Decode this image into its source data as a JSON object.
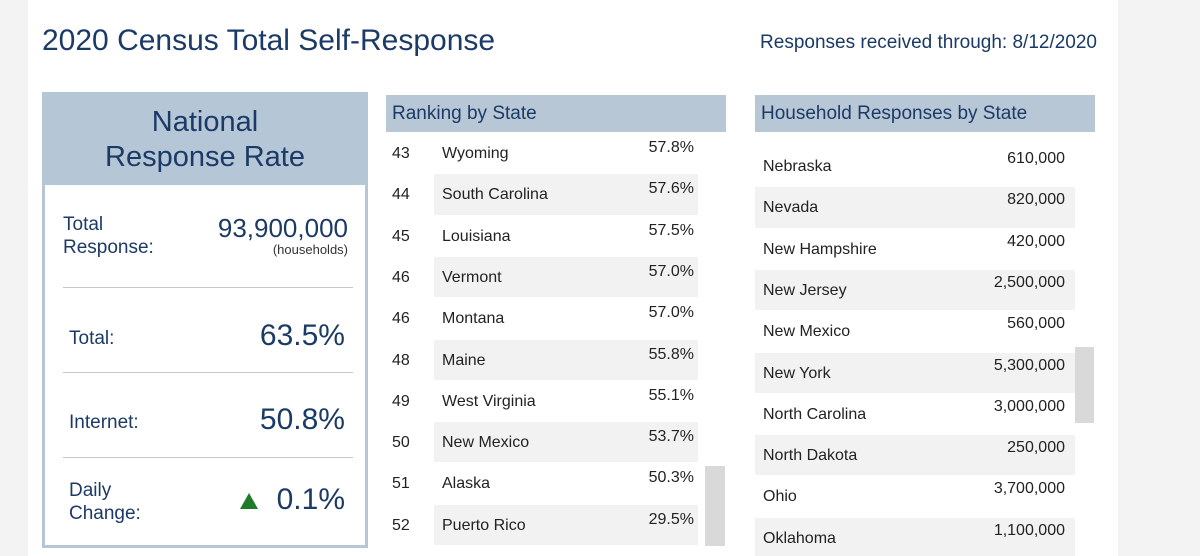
{
  "header": {
    "title": "2020 Census Total Self-Response",
    "updated": "Responses received through: 8/12/2020"
  },
  "national": {
    "title_lines": [
      "National",
      "Response Rate"
    ],
    "total_response": {
      "label_lines": [
        "Total",
        "Response:"
      ],
      "value": "93,900,000",
      "unit": "(households)"
    },
    "metrics": [
      {
        "label_lines": [
          "Total:"
        ],
        "value": "63.5%"
      },
      {
        "label_lines": [
          "Internet:"
        ],
        "value": "50.8%"
      },
      {
        "label_lines": [
          "Daily",
          "Change:"
        ],
        "value": "0.1%"
      }
    ]
  },
  "ranking": {
    "title": "Ranking by State",
    "rows": [
      [
        "43",
        "Wyoming",
        "57.8%"
      ],
      [
        "44",
        "South Carolina",
        "57.6%"
      ],
      [
        "45",
        "Louisiana",
        "57.5%"
      ],
      [
        "46",
        "Vermont",
        "57.0%"
      ],
      [
        "46",
        "Montana",
        "57.0%"
      ],
      [
        "48",
        "Maine",
        "55.8%"
      ],
      [
        "49",
        "West Virginia",
        "55.1%"
      ],
      [
        "50",
        "New Mexico",
        "53.7%"
      ],
      [
        "51",
        "Alaska",
        "50.3%"
      ],
      [
        "52",
        "Puerto Rico",
        "29.5%"
      ]
    ]
  },
  "households": {
    "title": "Household Responses by State",
    "rows": [
      [
        "Nebraska",
        "610,000"
      ],
      [
        "Nevada",
        "820,000"
      ],
      [
        "New Hampshire",
        "420,000"
      ],
      [
        "New Jersey",
        "2,500,000"
      ],
      [
        "New Mexico",
        "560,000"
      ],
      [
        "New York",
        "5,300,000"
      ],
      [
        "North Carolina",
        "3,000,000"
      ],
      [
        "North Dakota",
        "250,000"
      ],
      [
        "Ohio",
        "3,700,000"
      ],
      [
        "Oklahoma",
        "1,100,000"
      ]
    ]
  }
}
